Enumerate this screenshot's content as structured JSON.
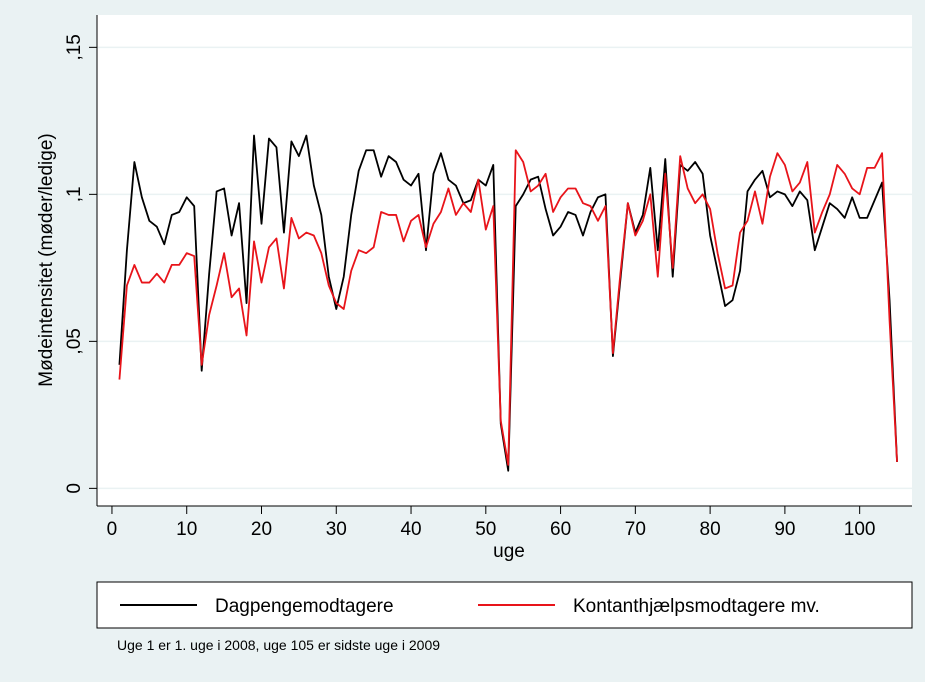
{
  "chart_data": {
    "type": "line",
    "xlabel": "uge",
    "ylabel": "Mødeintensitet (møder/ledige)",
    "note": "Uge 1 er 1. uge i 2008, uge 105 er sidste uge i 2009",
    "x": [
      1,
      2,
      3,
      4,
      5,
      6,
      7,
      8,
      9,
      10,
      11,
      12,
      13,
      14,
      15,
      16,
      17,
      18,
      19,
      20,
      21,
      22,
      23,
      24,
      25,
      26,
      27,
      28,
      29,
      30,
      31,
      32,
      33,
      34,
      35,
      36,
      37,
      38,
      39,
      40,
      41,
      42,
      43,
      44,
      45,
      46,
      47,
      48,
      49,
      50,
      51,
      52,
      53,
      54,
      55,
      56,
      57,
      58,
      59,
      60,
      61,
      62,
      63,
      64,
      65,
      66,
      67,
      68,
      69,
      70,
      71,
      72,
      73,
      74,
      75,
      76,
      77,
      78,
      79,
      80,
      81,
      82,
      83,
      84,
      85,
      86,
      87,
      88,
      89,
      90,
      91,
      92,
      93,
      94,
      95,
      96,
      97,
      98,
      99,
      100,
      101,
      102,
      103,
      104,
      105
    ],
    "series": [
      {
        "name": "Dagpengemodtagere",
        "color": "#000000",
        "values": [
          0.042,
          0.081,
          0.111,
          0.099,
          0.091,
          0.089,
          0.083,
          0.093,
          0.094,
          0.099,
          0.096,
          0.04,
          0.073,
          0.101,
          0.102,
          0.086,
          0.097,
          0.063,
          0.12,
          0.09,
          0.119,
          0.116,
          0.087,
          0.118,
          0.113,
          0.12,
          0.103,
          0.093,
          0.072,
          0.061,
          0.072,
          0.093,
          0.108,
          0.115,
          0.115,
          0.106,
          0.113,
          0.111,
          0.105,
          0.103,
          0.107,
          0.081,
          0.107,
          0.114,
          0.105,
          0.103,
          0.097,
          0.098,
          0.105,
          0.103,
          0.11,
          0.022,
          0.006,
          0.096,
          0.1,
          0.105,
          0.106,
          0.095,
          0.086,
          0.089,
          0.094,
          0.093,
          0.086,
          0.094,
          0.099,
          0.1,
          0.045,
          0.071,
          0.097,
          0.087,
          0.093,
          0.109,
          0.081,
          0.112,
          0.072,
          0.11,
          0.108,
          0.111,
          0.107,
          0.086,
          0.074,
          0.062,
          0.064,
          0.074,
          0.101,
          0.105,
          0.108,
          0.099,
          0.101,
          0.1,
          0.096,
          0.101,
          0.098,
          0.081,
          0.089,
          0.097,
          0.095,
          0.092,
          0.099,
          0.092,
          0.092,
          0.098,
          0.104,
          0.064,
          0.009
        ]
      },
      {
        "name": "Kontanthjælpsmodtagere mv.",
        "color": "#e8141a",
        "values": [
          0.037,
          0.069,
          0.076,
          0.07,
          0.07,
          0.073,
          0.07,
          0.076,
          0.076,
          0.08,
          0.079,
          0.042,
          0.059,
          0.069,
          0.08,
          0.065,
          0.068,
          0.052,
          0.084,
          0.07,
          0.082,
          0.085,
          0.068,
          0.092,
          0.085,
          0.087,
          0.086,
          0.08,
          0.069,
          0.063,
          0.061,
          0.074,
          0.081,
          0.08,
          0.082,
          0.094,
          0.093,
          0.093,
          0.084,
          0.091,
          0.093,
          0.082,
          0.09,
          0.094,
          0.102,
          0.093,
          0.097,
          0.094,
          0.105,
          0.088,
          0.096,
          0.023,
          0.008,
          0.115,
          0.111,
          0.101,
          0.103,
          0.107,
          0.094,
          0.099,
          0.102,
          0.102,
          0.097,
          0.096,
          0.091,
          0.096,
          0.046,
          0.073,
          0.097,
          0.086,
          0.091,
          0.1,
          0.072,
          0.107,
          0.075,
          0.113,
          0.102,
          0.097,
          0.1,
          0.095,
          0.08,
          0.068,
          0.069,
          0.087,
          0.091,
          0.101,
          0.09,
          0.106,
          0.114,
          0.11,
          0.101,
          0.104,
          0.111,
          0.087,
          0.094,
          0.1,
          0.11,
          0.107,
          0.102,
          0.1,
          0.109,
          0.109,
          0.114,
          0.057,
          0.009
        ]
      }
    ],
    "xlim": [
      -2,
      107
    ],
    "xticks": [
      0,
      10,
      20,
      30,
      40,
      50,
      60,
      70,
      80,
      90,
      100
    ],
    "ylim": [
      -0.006,
      0.161
    ],
    "yticks": [
      0,
      {
        "value": 0.05,
        "label": ",05"
      },
      {
        "value": 0.1,
        "label": ",1"
      },
      {
        "value": 0.15,
        "label": ",15"
      }
    ],
    "grid": true,
    "legend": "bottom"
  }
}
